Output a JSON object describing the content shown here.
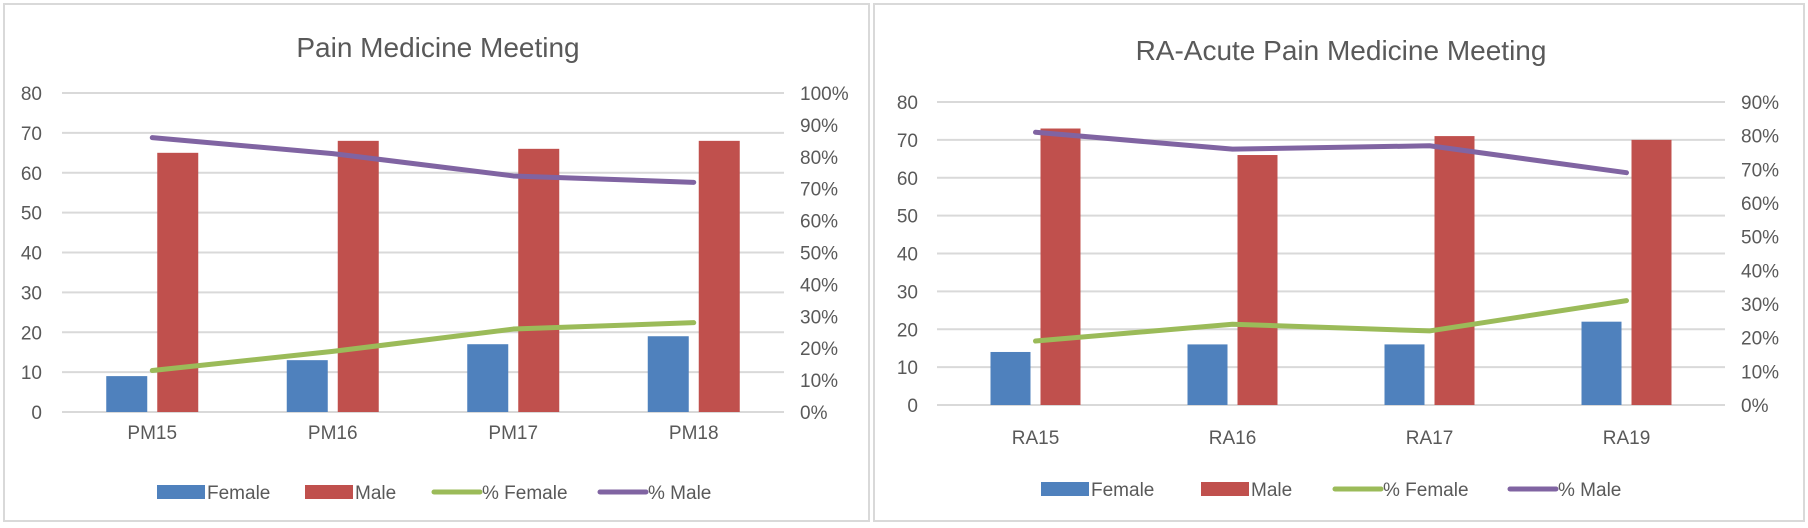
{
  "chart_data": [
    {
      "type": "bar",
      "title": "Pain Medicine Meeting",
      "categories": [
        "PM15",
        "PM16",
        "PM17",
        "PM18"
      ],
      "series": [
        {
          "name": "Female",
          "type": "bar",
          "axis": "primary",
          "color": "#4f81bd",
          "values": [
            9,
            13,
            17,
            19
          ]
        },
        {
          "name": "Male",
          "type": "bar",
          "axis": "primary",
          "color": "#c0504d",
          "values": [
            65,
            68,
            66,
            68
          ]
        },
        {
          "name": "% Female",
          "type": "line",
          "axis": "secondary",
          "color": "#9bbb59",
          "values": [
            0.13,
            0.19,
            0.26,
            0.28
          ]
        },
        {
          "name": "% Male",
          "type": "line",
          "axis": "secondary",
          "color": "#8064a2",
          "values": [
            0.86,
            0.81,
            0.74,
            0.72
          ]
        }
      ],
      "ylim": [
        0,
        80
      ],
      "yticks": [
        "0",
        "10",
        "20",
        "30",
        "40",
        "50",
        "60",
        "70",
        "80"
      ],
      "y2lim": [
        0,
        1.0
      ],
      "y2ticks": [
        "0%",
        "10%",
        "20%",
        "30%",
        "40%",
        "50%",
        "60%",
        "70%",
        "80%",
        "90%",
        "100%"
      ],
      "xlabel": "",
      "ylabel": "",
      "y2label": "",
      "grid": true,
      "legend": "bottom"
    },
    {
      "type": "bar",
      "title": "RA-Acute Pain Medicine Meeting",
      "categories": [
        "RA15",
        "RA16",
        "RA17",
        "RA19"
      ],
      "series": [
        {
          "name": "Female",
          "type": "bar",
          "axis": "primary",
          "color": "#4f81bd",
          "values": [
            14,
            16,
            16,
            22
          ]
        },
        {
          "name": "Male",
          "type": "bar",
          "axis": "primary",
          "color": "#c0504d",
          "values": [
            73,
            66,
            71,
            70
          ]
        },
        {
          "name": "% Female",
          "type": "line",
          "axis": "secondary",
          "color": "#9bbb59",
          "values": [
            0.19,
            0.24,
            0.22,
            0.31
          ]
        },
        {
          "name": "% Male",
          "type": "line",
          "axis": "secondary",
          "color": "#8064a2",
          "values": [
            0.81,
            0.76,
            0.77,
            0.69
          ]
        }
      ],
      "ylim": [
        0,
        80
      ],
      "yticks": [
        "0",
        "10",
        "20",
        "30",
        "40",
        "50",
        "60",
        "70",
        "80"
      ],
      "y2lim": [
        0,
        0.9
      ],
      "y2ticks": [
        "0%",
        "10%",
        "20%",
        "30%",
        "40%",
        "50%",
        "60%",
        "70%",
        "80%",
        "90%"
      ],
      "xlabel": "",
      "ylabel": "",
      "y2label": "",
      "grid": true,
      "legend": "bottom"
    }
  ]
}
